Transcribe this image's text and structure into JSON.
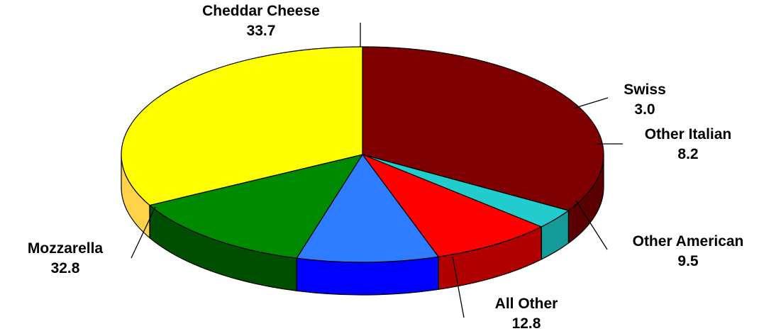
{
  "chart_data": {
    "type": "pie",
    "three_d": true,
    "legend": "none",
    "slices": [
      {
        "label": "Cheddar Cheese",
        "value": 33.7,
        "display_value": "33.7",
        "color": "#7f0000",
        "side_color": "#5a0000"
      },
      {
        "label": "Swiss",
        "value": 3.0,
        "display_value": "3.0",
        "color": "#22cccc",
        "side_color": "#159a9a"
      },
      {
        "label": "Other Italian",
        "value": 8.2,
        "display_value": "8.2",
        "color": "#ff0000",
        "side_color": "#b00000"
      },
      {
        "label": "Other American",
        "value": 9.5,
        "display_value": "9.5",
        "color": "#2e7cff",
        "side_color": "#0000ff"
      },
      {
        "label": "All Other",
        "value": 12.8,
        "display_value": "12.8",
        "color": "#008a00",
        "side_color": "#004e00"
      },
      {
        "label": "Mozzarella",
        "value": 32.8,
        "display_value": "32.8",
        "color": "#ffff00",
        "side_color": "#ffd24a"
      }
    ]
  }
}
